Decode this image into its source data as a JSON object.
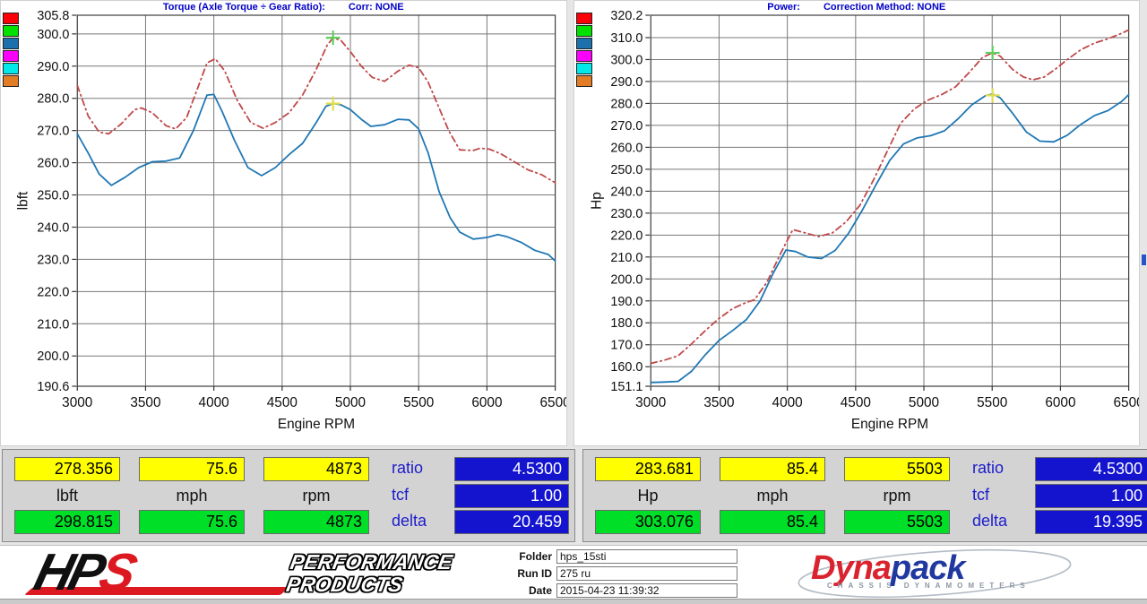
{
  "legend_colors": [
    "#fb0007",
    "#00e100",
    "#1c71ad",
    "#fb00fb",
    "#00e8e8",
    "#e27c25"
  ],
  "chart_data": [
    {
      "type": "line",
      "title": "Torque (Axle Torque ÷ Gear Ratio):",
      "corr": "Corr: NONE",
      "xlabel": "Engine RPM",
      "ylabel": "lbft",
      "xlim": [
        3000,
        6500
      ],
      "ylim": [
        190.6,
        305.8
      ],
      "x_ticks": [
        3000,
        3500,
        4000,
        4500,
        5000,
        5500,
        6000,
        6500
      ],
      "y_ticks": [
        305.8,
        300.0,
        290.0,
        280.0,
        270.0,
        260.0,
        250.0,
        240.0,
        230.0,
        220.0,
        210.0,
        200.0,
        190.6
      ],
      "grid": true,
      "series": [
        {
          "name": "reference-run-torque",
          "color": "#bf4848",
          "style": "dashdot",
          "x": [
            3000,
            3080,
            3160,
            3230,
            3320,
            3420,
            3470,
            3550,
            3650,
            3720,
            3800,
            3880,
            3950,
            4010,
            4080,
            4170,
            4270,
            4360,
            4450,
            4550,
            4650,
            4750,
            4830,
            4873,
            4930,
            5000,
            5080,
            5160,
            5250,
            5350,
            5430,
            5500,
            5570,
            5650,
            5720,
            5800,
            5900,
            5950,
            6020,
            6100,
            6200,
            6300,
            6400,
            6500
          ],
          "y": [
            284,
            274.5,
            269.5,
            269,
            272,
            276.5,
            277,
            275.5,
            271.5,
            270.5,
            274,
            283,
            291,
            292.3,
            288.5,
            279.5,
            272.5,
            270.7,
            272.5,
            275.5,
            281,
            289,
            296.5,
            298.8,
            298,
            294.5,
            290,
            286.5,
            285.3,
            288.5,
            290.3,
            289.5,
            285,
            277,
            270,
            264,
            263.8,
            264.5,
            264.2,
            262.8,
            260.3,
            257.8,
            256.3,
            253.8
          ]
        },
        {
          "name": "current-run-torque",
          "color": "#1f77b4",
          "style": "solid",
          "x": [
            3000,
            3080,
            3160,
            3250,
            3350,
            3450,
            3550,
            3650,
            3750,
            3850,
            3950,
            4000,
            4060,
            4150,
            4250,
            4350,
            4450,
            4550,
            4650,
            4750,
            4820,
            4873,
            4930,
            5000,
            5080,
            5150,
            5250,
            5350,
            5430,
            5500,
            5570,
            5650,
            5730,
            5800,
            5900,
            6000,
            6080,
            6150,
            6250,
            6350,
            6450,
            6500
          ],
          "y": [
            269,
            263,
            256.5,
            253,
            255.5,
            258.5,
            260.3,
            260.5,
            261.5,
            270,
            281,
            281.2,
            276,
            267,
            258.5,
            256,
            258.5,
            262.5,
            266,
            272.5,
            277.5,
            278.4,
            278,
            276.5,
            273.5,
            271.3,
            271.8,
            273.5,
            273.3,
            270.5,
            263,
            251,
            243,
            238.5,
            236.3,
            236.8,
            237.7,
            237,
            235.3,
            232.8,
            231.5,
            229.5
          ]
        }
      ],
      "markers": [
        {
          "name": "peak-reference",
          "x": 4873,
          "y": 298.815,
          "color": "#5fd05f"
        },
        {
          "name": "peak-current",
          "x": 4873,
          "y": 278.356,
          "color": "#e0dd4e"
        }
      ]
    },
    {
      "type": "line",
      "title": "Power:",
      "corr": "Correction Method: NONE",
      "xlabel": "Engine RPM",
      "ylabel": "Hp",
      "xlim": [
        3000,
        6500
      ],
      "ylim": [
        151.1,
        320.2
      ],
      "x_ticks": [
        3000,
        3500,
        4000,
        4500,
        5000,
        5500,
        6000,
        6500
      ],
      "y_ticks": [
        320.2,
        310.0,
        300.0,
        290.0,
        280.0,
        270.0,
        260.0,
        250.0,
        240.0,
        230.0,
        220.0,
        210.0,
        200.0,
        190.0,
        180.0,
        170.0,
        160.0,
        151.1
      ],
      "grid": true,
      "series": [
        {
          "name": "reference-run-power",
          "color": "#bf4848",
          "style": "dashdot",
          "x": [
            3000,
            3100,
            3200,
            3300,
            3400,
            3500,
            3600,
            3700,
            3760,
            3850,
            3950,
            4040,
            4130,
            4230,
            4330,
            4430,
            4530,
            4630,
            4730,
            4830,
            4930,
            5030,
            5130,
            5230,
            5330,
            5430,
            5503,
            5560,
            5650,
            5730,
            5800,
            5880,
            5960,
            6050,
            6150,
            6250,
            6350,
            6450,
            6500
          ],
          "y": [
            161.5,
            163,
            165,
            170.5,
            176.5,
            182,
            186.5,
            189.3,
            190.5,
            198.5,
            211.5,
            222.5,
            221,
            219.3,
            221,
            226,
            233.5,
            245,
            258,
            271,
            277.5,
            281.5,
            284,
            287.5,
            294,
            301,
            303.1,
            301.5,
            295.5,
            292,
            290.8,
            292,
            295.5,
            300,
            304.5,
            307.5,
            309.5,
            312,
            313.5
          ]
        },
        {
          "name": "current-run-power",
          "color": "#1f77b4",
          "style": "solid",
          "x": [
            3000,
            3100,
            3200,
            3300,
            3400,
            3500,
            3600,
            3700,
            3800,
            3900,
            3990,
            4060,
            4150,
            4250,
            4350,
            4450,
            4550,
            4650,
            4750,
            4850,
            4950,
            5050,
            5150,
            5250,
            5350,
            5450,
            5503,
            5560,
            5650,
            5750,
            5850,
            5950,
            6050,
            6150,
            6250,
            6350,
            6450,
            6500
          ],
          "y": [
            152.8,
            153,
            153.3,
            158,
            165.5,
            172,
            176.5,
            181.5,
            190,
            203,
            213.2,
            212.5,
            210,
            209.3,
            213,
            221,
            231.5,
            243,
            254,
            261.5,
            264.3,
            265.3,
            267.5,
            273,
            279.3,
            283.5,
            284.3,
            282.5,
            275.5,
            267,
            262.8,
            262.5,
            265.5,
            270.5,
            274.5,
            276.8,
            281,
            284
          ]
        }
      ],
      "markers": [
        {
          "name": "peak-reference",
          "x": 5503,
          "y": 303.076,
          "color": "#5fd05f"
        },
        {
          "name": "peak-current",
          "x": 5503,
          "y": 283.681,
          "color": "#e0dd4e"
        }
      ]
    }
  ],
  "readouts": {
    "left": {
      "top": [
        "278.356",
        "75.6",
        "4873"
      ],
      "units": [
        "lbft",
        "mph",
        "rpm"
      ],
      "bottom": [
        "298.815",
        "75.6",
        "4873"
      ],
      "params": [
        {
          "label": "ratio",
          "value": "4.5300"
        },
        {
          "label": "tcf",
          "value": "1.00"
        },
        {
          "label": "delta",
          "value": "20.459"
        }
      ]
    },
    "right": {
      "top": [
        "283.681",
        "85.4",
        "5503"
      ],
      "units": [
        "Hp",
        "mph",
        "rpm"
      ],
      "bottom": [
        "303.076",
        "85.4",
        "5503"
      ],
      "params": [
        {
          "label": "ratio",
          "value": "4.5300"
        },
        {
          "label": "tcf",
          "value": "1.00"
        },
        {
          "label": "delta",
          "value": "19.395"
        }
      ]
    }
  },
  "footer": {
    "hps": {
      "h": "H",
      "p": "P",
      "s": "S",
      "tagline1": "PERFORMANCE",
      "tagline2": "PRODUCTS"
    },
    "fields": [
      {
        "label": "Folder",
        "value": "hps_15sti"
      },
      {
        "label": "Run ID",
        "value": "275 ru"
      },
      {
        "label": "Date",
        "value": "2015-04-23 11:39:32"
      }
    ],
    "dynapack": {
      "part1": "Dyna",
      "part2": "pack",
      "subtitle": "CHASSIS DYNAMOMETERS"
    }
  }
}
